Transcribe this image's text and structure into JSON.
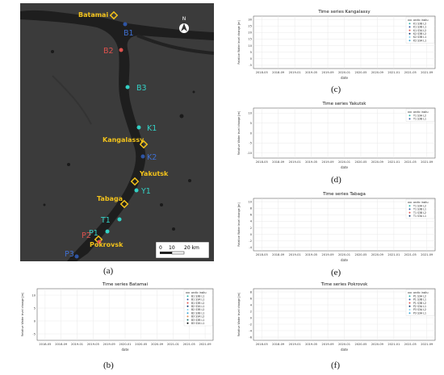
{
  "panels": {
    "a": "(a)",
    "b": "(b)",
    "c": "(c)",
    "d": "(d)",
    "e": "(e)",
    "f": "(f)"
  },
  "map": {
    "places": [
      "Batamai",
      "Kangalassy",
      "Yakutsk",
      "Tabaga",
      "Pokrovsk"
    ],
    "stations": [
      "B1",
      "B2",
      "B3",
      "K1",
      "K2",
      "Y1",
      "T1",
      "P1",
      "P2",
      "P3"
    ],
    "north": "N",
    "scale": {
      "ticks": [
        "0",
        "10",
        "20 km"
      ]
    },
    "colors": {
      "land": "#3b3b3b",
      "river": "#202020",
      "place": "#f2c21b",
      "cyan": "#33d1c6",
      "red": "#e0524e",
      "blue": "#2f55a4"
    }
  },
  "chart_data": [
    {
      "id": "c",
      "type": "scatter",
      "title": "Time series Kangalassy",
      "xlabel": "date",
      "ylabel": "Relative Water level change [m]",
      "x_ticks": [
        "2018-05",
        "2018-09",
        "2019-01",
        "2019-05",
        "2019-09",
        "2020-01",
        "2020-05",
        "2020-09",
        "2021-01",
        "2021-05",
        "2021-09"
      ],
      "y_ticks": [
        "-5",
        "0",
        "5",
        "10",
        "15",
        "20",
        "25",
        "30"
      ],
      "ylim": [
        -7,
        31
      ],
      "legend": [
        "arctic insitu",
        "K1 S3B L2",
        "K1 S3B L1",
        "K1 S3A L2",
        "K2 S3B L2",
        "K2 S3B L1",
        "K2 S3A L1"
      ],
      "legend_position": "top-right",
      "grid": true
    },
    {
      "id": "d",
      "type": "scatter",
      "title": "Time series Yakutsk",
      "xlabel": "date",
      "ylabel": "Relative Water level change [m]",
      "x_ticks": [
        "2018-05",
        "2018-09",
        "2019-01",
        "2019-05",
        "2019-09",
        "2020-01",
        "2020-05",
        "2020-09",
        "2021-01",
        "2021-05",
        "2021-09"
      ],
      "y_ticks": [
        "-10",
        "-5",
        "0",
        "5",
        "10"
      ],
      "ylim": [
        -11,
        12
      ],
      "legend": [
        "arctic insitu",
        "Y1 S3A L2",
        "Y1 S3B L1"
      ],
      "legend_position": "top-right",
      "grid": true
    },
    {
      "id": "e",
      "type": "scatter",
      "title": "Time series Tabaga",
      "xlabel": "date",
      "ylabel": "Relative Water level change [m]",
      "x_ticks": [
        "2018-05",
        "2018-09",
        "2019-01",
        "2019-05",
        "2019-09",
        "2020-01",
        "2020-05",
        "2020-09",
        "2021-01",
        "2021-05",
        "2021-09"
      ],
      "y_ticks": [
        "-4",
        "-2",
        "0",
        "2",
        "4",
        "6",
        "8",
        "10"
      ],
      "ylim": [
        -5,
        11
      ],
      "legend": [
        "arctic insitu",
        "T1 S3A L2",
        "T1 S3B L1",
        "T1 S3B L2",
        "T1 S3A L1"
      ],
      "legend_position": "top-right",
      "grid": true
    },
    {
      "id": "b",
      "type": "scatter",
      "title": "Time series Batamai",
      "xlabel": "date",
      "ylabel": "Relative Water level change [m]",
      "x_ticks": [
        "2018-05",
        "2018-09",
        "2019-01",
        "2019-05",
        "2019-09",
        "2020-01",
        "2020-05",
        "2020-09",
        "2021-01",
        "2021-05",
        "2021-09"
      ],
      "y_ticks": [
        "-5",
        "0",
        "5",
        "10"
      ],
      "ylim": [
        -7,
        12
      ],
      "legend": [
        "arctic insitu",
        "B1 S3B L1",
        "B1 S3A L1",
        "B1 S3B L2",
        "B2 S3A L1",
        "B2 S3B L2",
        "B2 S3B L1",
        "B3 S3A L2",
        "B3 S3B L1",
        "B3 S3A L1"
      ],
      "legend_position": "top-right",
      "grid": true
    },
    {
      "id": "f",
      "type": "scatter",
      "title": "Time series Pokrovsk",
      "xlabel": "date",
      "ylabel": "Relative Water level change [m]",
      "x_ticks": [
        "2018-05",
        "2018-09",
        "2019-01",
        "2019-05",
        "2019-09",
        "2020-01",
        "2020-05",
        "2020-09",
        "2021-01",
        "2021-05",
        "2021-09"
      ],
      "y_ticks": [
        "-6",
        "-4",
        "-2",
        "0",
        "2",
        "4",
        "6",
        "8"
      ],
      "ylim": [
        -7,
        9
      ],
      "legend": [
        "arctic insitu",
        "P1 S3A L2",
        "P1 S3B L1",
        "P1 S3B L2",
        "P2 S3A L1",
        "P3 S3A L2",
        "P3 S3A L1"
      ],
      "legend_position": "top-right",
      "grid": true
    }
  ]
}
